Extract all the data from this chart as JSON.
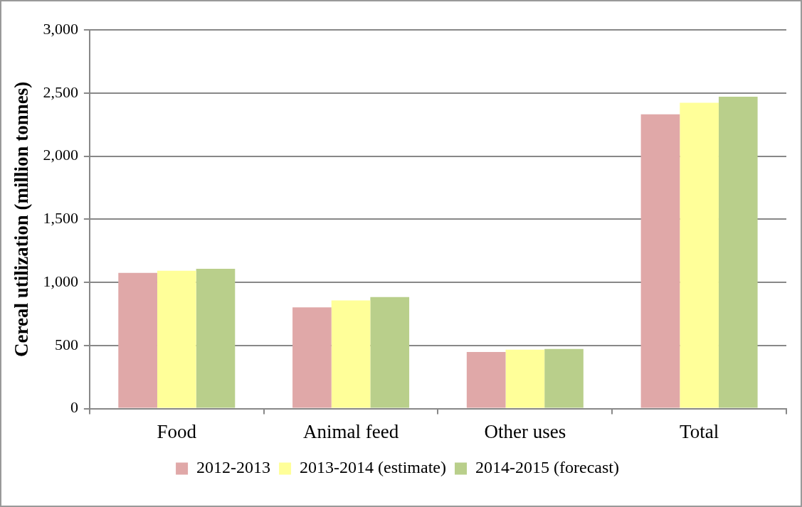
{
  "chart_data": {
    "type": "bar",
    "ylabel": "Cereal utilization (million tonnes)",
    "categories": [
      "Food",
      "Animal feed",
      "Other uses",
      "Total"
    ],
    "series": [
      {
        "name": "2012-2013",
        "color": "#e0a8a8",
        "values": [
          1075,
          802,
          448,
          2331
        ]
      },
      {
        "name": "2013-2014 (estimate)",
        "color": "#ffff99",
        "values": [
          1092,
          857,
          466,
          2423
        ]
      },
      {
        "name": "2014-2015 (forecast)",
        "color": "#b9cf8b",
        "values": [
          1108,
          883,
          472,
          2470
        ]
      }
    ],
    "ylim": [
      0,
      3000
    ],
    "yticks": [
      {
        "value": 0,
        "label": "0"
      },
      {
        "value": 500,
        "label": "500"
      },
      {
        "value": 1000,
        "label": "1,000"
      },
      {
        "value": 1500,
        "label": "1,500"
      },
      {
        "value": 2000,
        "label": "2,000"
      },
      {
        "value": 2500,
        "label": "2,500"
      },
      {
        "value": 3000,
        "label": "3,000"
      }
    ],
    "grid": "y",
    "legend": "bottom"
  }
}
